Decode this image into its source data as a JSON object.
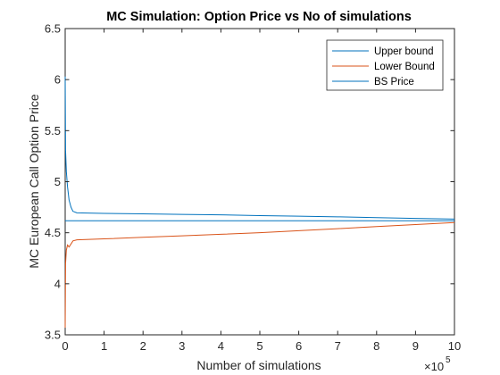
{
  "chart_data": {
    "type": "line",
    "title": "MC Simulation: Option Price vs No of simulations",
    "xlabel": "Number of simulations",
    "ylabel": "MC European Call Option Price",
    "x_exponent_label": "×10",
    "x_exponent": "5",
    "xlim": [
      0,
      10
    ],
    "ylim": [
      3.5,
      6.5
    ],
    "x_scale_factor": 100000,
    "xticks": [
      "0",
      "1",
      "2",
      "3",
      "4",
      "5",
      "6",
      "7",
      "8",
      "9",
      "10"
    ],
    "yticks": [
      "3.5",
      "4",
      "4.5",
      "5",
      "5.5",
      "6",
      "6.5"
    ],
    "grid": false,
    "legend_position": "top-right",
    "series": [
      {
        "name": "Upper bound",
        "color": "#0072BD",
        "x": [
          0,
          0.01,
          0.03,
          0.06,
          0.1,
          0.15,
          0.2,
          0.3,
          1,
          2,
          3,
          4,
          5,
          6,
          7,
          8,
          9,
          10
        ],
        "y": [
          6.03,
          5.3,
          5.1,
          4.95,
          4.82,
          4.75,
          4.71,
          4.695,
          4.69,
          4.685,
          4.68,
          4.675,
          4.668,
          4.662,
          4.656,
          4.648,
          4.64,
          4.634
        ]
      },
      {
        "name": "Lower Bound",
        "color": "#D95319",
        "x": [
          0,
          0.01,
          0.03,
          0.06,
          0.1,
          0.2,
          0.3,
          1,
          2,
          3,
          4,
          5,
          6,
          7,
          8,
          9,
          10
        ],
        "y": [
          3.57,
          4.2,
          4.33,
          4.38,
          4.36,
          4.42,
          4.43,
          4.44,
          4.455,
          4.47,
          4.485,
          4.5,
          4.52,
          4.54,
          4.56,
          4.58,
          4.6
        ]
      },
      {
        "name": "BS Price",
        "color": "#0072BD",
        "x": [
          0,
          10
        ],
        "y": [
          4.617,
          4.617
        ]
      }
    ]
  }
}
